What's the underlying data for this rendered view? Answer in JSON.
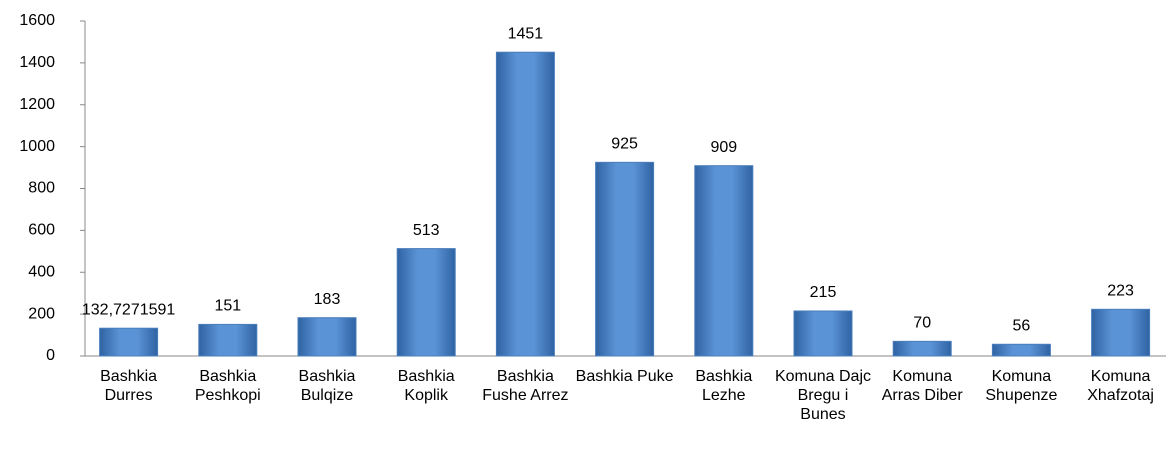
{
  "chart_data": {
    "type": "bar",
    "categories": [
      "Bashkia Durres",
      "Bashkia Peshkopi",
      "Bashkia Bulqize",
      "Bashkia Koplik",
      "Bashkia Fushe Arrez",
      "Bashkia Puke",
      "Bashkia Lezhe",
      "Komuna Dajc Bregu i Bunes",
      "Komuna Arras Diber",
      "Komuna Shupenze",
      "Komuna Xhafzotaj"
    ],
    "values": [
      132.7271591,
      151,
      183,
      513,
      1451,
      925,
      909,
      215,
      70,
      56,
      223
    ],
    "value_labels": [
      "132,7271591",
      "151",
      "183",
      "513",
      "1451",
      "925",
      "909",
      "215",
      "70",
      "56",
      "223"
    ],
    "color": "#4a7ebb",
    "ylim": [
      0,
      1600
    ],
    "yticks": [
      0,
      200,
      400,
      600,
      800,
      1000,
      1200,
      1400,
      1600
    ],
    "grid": false
  }
}
